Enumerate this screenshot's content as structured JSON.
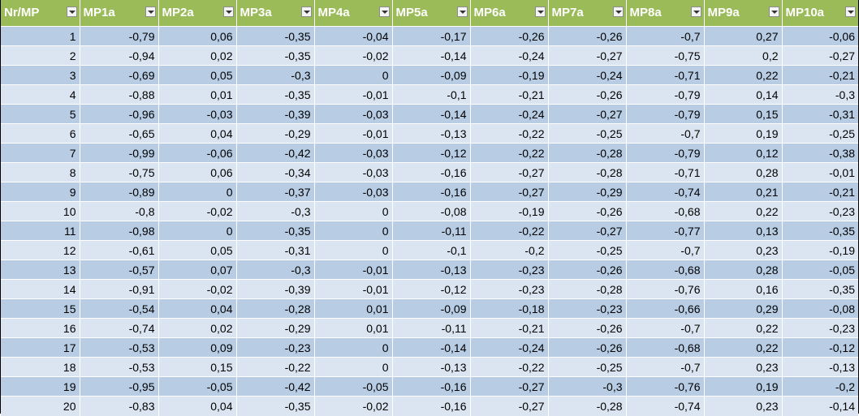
{
  "headers": [
    "Nr/MP",
    "MP1a",
    "MP2a",
    "MP3a",
    "MP4a",
    "MP5a",
    "MP6a",
    "MP7a",
    "MP8a",
    "MP9a",
    "MP10a"
  ],
  "rows": [
    [
      "1",
      "-0,79",
      "0,06",
      "-0,35",
      "-0,04",
      "-0,17",
      "-0,26",
      "-0,26",
      "-0,7",
      "0,27",
      "-0,06"
    ],
    [
      "2",
      "-0,94",
      "0,02",
      "-0,35",
      "-0,02",
      "-0,14",
      "-0,24",
      "-0,27",
      "-0,75",
      "0,2",
      "-0,27"
    ],
    [
      "3",
      "-0,69",
      "0,05",
      "-0,3",
      "0",
      "-0,09",
      "-0,19",
      "-0,24",
      "-0,71",
      "0,22",
      "-0,21"
    ],
    [
      "4",
      "-0,88",
      "0,01",
      "-0,35",
      "-0,01",
      "-0,1",
      "-0,21",
      "-0,26",
      "-0,79",
      "0,14",
      "-0,3"
    ],
    [
      "5",
      "-0,96",
      "-0,03",
      "-0,39",
      "-0,03",
      "-0,14",
      "-0,24",
      "-0,27",
      "-0,79",
      "0,15",
      "-0,31"
    ],
    [
      "6",
      "-0,65",
      "0,04",
      "-0,29",
      "-0,01",
      "-0,13",
      "-0,22",
      "-0,25",
      "-0,7",
      "0,19",
      "-0,25"
    ],
    [
      "7",
      "-0,99",
      "-0,06",
      "-0,42",
      "-0,03",
      "-0,12",
      "-0,22",
      "-0,28",
      "-0,79",
      "0,12",
      "-0,38"
    ],
    [
      "8",
      "-0,75",
      "0,06",
      "-0,34",
      "-0,03",
      "-0,16",
      "-0,27",
      "-0,28",
      "-0,71",
      "0,28",
      "-0,01"
    ],
    [
      "9",
      "-0,89",
      "0",
      "-0,37",
      "-0,03",
      "-0,16",
      "-0,27",
      "-0,29",
      "-0,74",
      "0,21",
      "-0,21"
    ],
    [
      "10",
      "-0,8",
      "-0,02",
      "-0,3",
      "0",
      "-0,08",
      "-0,19",
      "-0,26",
      "-0,68",
      "0,22",
      "-0,23"
    ],
    [
      "11",
      "-0,98",
      "0",
      "-0,35",
      "0",
      "-0,11",
      "-0,22",
      "-0,27",
      "-0,77",
      "0,13",
      "-0,35"
    ],
    [
      "12",
      "-0,61",
      "0,05",
      "-0,31",
      "0",
      "-0,1",
      "-0,2",
      "-0,25",
      "-0,7",
      "0,23",
      "-0,19"
    ],
    [
      "13",
      "-0,57",
      "0,07",
      "-0,3",
      "-0,01",
      "-0,13",
      "-0,23",
      "-0,26",
      "-0,68",
      "0,28",
      "-0,05"
    ],
    [
      "14",
      "-0,91",
      "-0,02",
      "-0,39",
      "-0,01",
      "-0,12",
      "-0,23",
      "-0,28",
      "-0,76",
      "0,16",
      "-0,35"
    ],
    [
      "15",
      "-0,54",
      "0,04",
      "-0,28",
      "0,01",
      "-0,09",
      "-0,18",
      "-0,23",
      "-0,66",
      "0,29",
      "-0,08"
    ],
    [
      "16",
      "-0,74",
      "0,02",
      "-0,29",
      "0,01",
      "-0,11",
      "-0,21",
      "-0,26",
      "-0,7",
      "0,22",
      "-0,23"
    ],
    [
      "17",
      "-0,53",
      "0,09",
      "-0,23",
      "0",
      "-0,14",
      "-0,24",
      "-0,26",
      "-0,68",
      "0,22",
      "-0,12"
    ],
    [
      "18",
      "-0,53",
      "0,15",
      "-0,22",
      "0",
      "-0,13",
      "-0,22",
      "-0,25",
      "-0,7",
      "0,23",
      "-0,13"
    ],
    [
      "19",
      "-0,95",
      "-0,05",
      "-0,42",
      "-0,05",
      "-0,16",
      "-0,27",
      "-0,3",
      "-0,76",
      "0,19",
      "-0,2"
    ],
    [
      "20",
      "-0,83",
      "0,04",
      "-0,35",
      "-0,02",
      "-0,16",
      "-0,27",
      "-0,28",
      "-0,74",
      "0,23",
      "-0,14"
    ]
  ],
  "colors": {
    "header_bg": "#9bbb59",
    "header_text": "#ffffff",
    "row_band_dark": "#b8cce4",
    "row_band_light": "#dbe5f1"
  },
  "icons": {
    "filter_dropdown": "chevron-down-icon"
  }
}
